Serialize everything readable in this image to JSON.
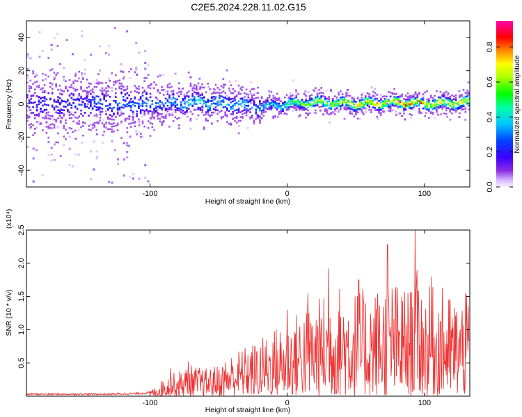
{
  "title": "C2E5.2024.228.11.02.G15",
  "chart_data": [
    {
      "type": "heatmap",
      "xlabel": "Height of straight line (km)",
      "ylabel": "Frequency (Hz)",
      "xlim": [
        -190,
        133
      ],
      "ylim": [
        -50,
        50
      ],
      "x_ticks": [
        -100,
        0,
        100
      ],
      "y_ticks": [
        -40,
        -20,
        0,
        20,
        40
      ],
      "colorbar": {
        "label": "Normalized spectral amplitude",
        "range": [
          0.0,
          0.95
        ],
        "ticks": [
          "0.0",
          "0.2",
          "0.4",
          "0.6",
          "0.8"
        ],
        "colormap": "rainbow (violet→blue→cyan→green→yellow→red→magenta)"
      },
      "ridge": {
        "description": "Spectral ridge near 0 Hz: broad scattered energy below -100 km narrowing to a bright line around 0–2 Hz above 0 km",
        "x": [
          -190,
          -150,
          -100,
          -70,
          -40,
          -25,
          -10,
          0,
          20,
          50,
          80,
          100,
          133
        ],
        "center_hz": [
          0,
          0,
          0,
          1,
          0,
          -2,
          -1,
          0,
          1,
          0,
          1,
          0,
          1
        ],
        "peak_amplitude": [
          0.25,
          0.3,
          0.35,
          0.45,
          0.45,
          0.4,
          0.5,
          0.6,
          0.75,
          0.85,
          0.9,
          0.9,
          0.9
        ]
      },
      "grid": false
    },
    {
      "type": "line",
      "xlabel": "Height of straight line (km)",
      "ylabel": "SNR (10 * v/v)",
      "y_multiplier": "(x10⁴)",
      "xlim": [
        -190,
        133
      ],
      "ylim": [
        0,
        2.5
      ],
      "x_ticks": [
        -100,
        0,
        100
      ],
      "y_ticks": [
        0.5,
        1.0,
        1.5,
        2.0,
        2.5
      ],
      "color": "#ee3333",
      "series": [
        {
          "x": [
            -190,
            -160,
            -130,
            -110,
            -100,
            -95,
            -90,
            -80,
            -70,
            -60,
            -50,
            -40,
            -30,
            -20,
            -10,
            0,
            10,
            20,
            30,
            40,
            50,
            60,
            70,
            75,
            80,
            90,
            93,
            100,
            110,
            120,
            133
          ],
          "y": [
            0.03,
            0.03,
            0.03,
            0.04,
            0.05,
            0.08,
            0.15,
            0.2,
            0.25,
            0.22,
            0.25,
            0.35,
            0.4,
            0.45,
            0.55,
            0.6,
            0.7,
            0.75,
            0.85,
            0.9,
            0.85,
            0.85,
            0.9,
            0.95,
            0.9,
            0.85,
            1.05,
            0.85,
            0.9,
            0.8,
            0.8
          ],
          "peaks": [
            {
              "x": -85,
              "y": 0.42
            },
            {
              "x": -72,
              "y": 0.52
            },
            {
              "x": -30,
              "y": 0.55
            },
            {
              "x": 0,
              "y": 1.3
            },
            {
              "x": 15,
              "y": 1.55
            },
            {
              "x": 30,
              "y": 1.92
            },
            {
              "x": 52,
              "y": 1.75
            },
            {
              "x": 73,
              "y": 2.28
            },
            {
              "x": 93,
              "y": 2.5
            },
            {
              "x": 105,
              "y": 1.8
            },
            {
              "x": 130,
              "y": 1.55
            }
          ]
        }
      ],
      "grid": false
    }
  ]
}
